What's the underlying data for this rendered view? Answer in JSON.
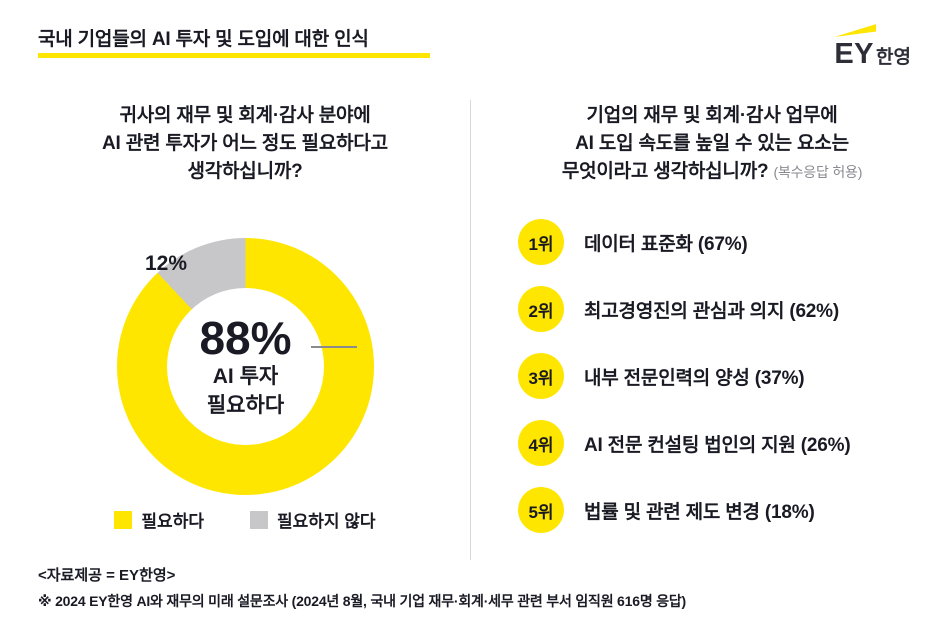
{
  "header": {
    "title": "국내 기업들의 AI 투자 및 도입에 대한 인식",
    "logo": {
      "ey": "EY",
      "suffix": "한영"
    }
  },
  "left": {
    "question_lines": {
      "l1": "귀사의 재무 및 회계·감사 분야에",
      "l2": "AI 관련 투자가 어느 정도 필요하다고",
      "l3": "생각하십니까?"
    },
    "donut": {
      "small_pct_label": "12%",
      "center_value": "88%",
      "center_line1": "AI 투자",
      "center_line2": "필요하다"
    },
    "legend": [
      {
        "label": "필요하다",
        "color": "#FFE600"
      },
      {
        "label": "필요하지 않다",
        "color": "#C7C7C9"
      }
    ]
  },
  "right": {
    "question_lines": {
      "l1": "기업의 재무 및 회계·감사 업무에",
      "l2": "AI 도입 속도를 높일 수 있는 요소는",
      "l3": "무엇이라고 생각하십니까?"
    },
    "question_note": "(복수응답 허용)",
    "items": [
      {
        "rank": "1위",
        "label": "데이터 표준화 (67%)"
      },
      {
        "rank": "2위",
        "label": "최고경영진의 관심과 의지 (62%)"
      },
      {
        "rank": "3위",
        "label": "내부 전문인력의 양성 (37%)"
      },
      {
        "rank": "4위",
        "label": "AI 전문 컨설팅 법인의 지원 (26%)"
      },
      {
        "rank": "5위",
        "label": "법률 및 관련 제도 변경 (18%)"
      }
    ]
  },
  "footer": {
    "source": "<자료제공 = EY한영>",
    "note": "※ 2024 EY한영 AI와 재무의 미래 설문조사 (2024년 8월, 국내 기업 재무·회계·세무 관련 부서 임직원 616명 응답)"
  },
  "chart_data": [
    {
      "type": "pie",
      "style": "donut",
      "title": "귀사의 재무 및 회계·감사 분야에 AI 관련 투자가 어느 정도 필요하다고 생각하십니까?",
      "categories": [
        "필요하다",
        "필요하지 않다"
      ],
      "values": [
        88,
        12
      ],
      "colors": [
        "#FFE600",
        "#C7C7C9"
      ],
      "center_annotation": "88% AI 투자 필요하다",
      "legend_position": "bottom"
    },
    {
      "type": "table",
      "title": "기업의 재무 및 회계·감사 업무에 AI 도입 속도를 높일 수 있는 요소는 무엇이라고 생각하십니까? (복수응답 허용)",
      "categories": [
        "데이터 표준화",
        "최고경영진의 관심과 의지",
        "내부 전문인력의 양성",
        "AI 전문 컨설팅 법인의 지원",
        "법률 및 관련 제도 변경"
      ],
      "values": [
        67,
        62,
        37,
        26,
        18
      ],
      "unit": "%",
      "note": "복수응답 허용, 순위 1~5위"
    }
  ]
}
